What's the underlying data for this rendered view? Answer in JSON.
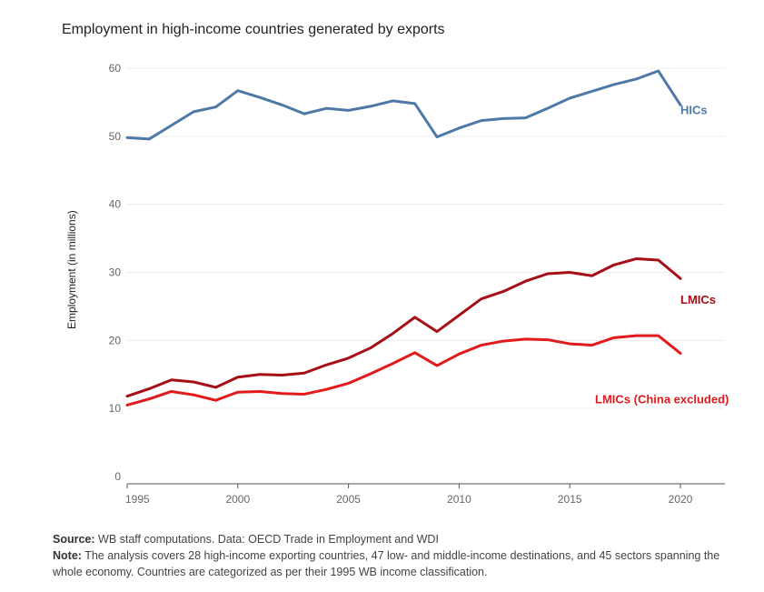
{
  "header": {
    "title": "Employment in high-income countries generated by exports"
  },
  "footer": {
    "source_label": "Source:",
    "source_text": " WB staff computations. Data: OECD Trade in Employment and WDI",
    "note_label": "Note:",
    "note_text": " The analysis covers 28 high-income exporting countries, 47 low- and middle-income destinations, and 45 sectors spanning the whole economy. Countries are categorized as per their 1995 WB income classification."
  },
  "chart_data": {
    "type": "line",
    "title": "Employment in high-income countries generated by exports",
    "xlabel": "",
    "ylabel": "Employment (in millions)",
    "xlim": [
      1995,
      2022
    ],
    "ylim": [
      0,
      60
    ],
    "grid": true,
    "x_ticks": [
      1995,
      2000,
      2005,
      2010,
      2015,
      2020
    ],
    "y_ticks": [
      0,
      10,
      20,
      30,
      40,
      50,
      60
    ],
    "x": [
      1995,
      1996,
      1997,
      1998,
      1999,
      2000,
      2001,
      2002,
      2003,
      2004,
      2005,
      2006,
      2007,
      2008,
      2009,
      2010,
      2011,
      2012,
      2013,
      2014,
      2015,
      2016,
      2017,
      2018,
      2019,
      2020
    ],
    "series": [
      {
        "name": "HICs",
        "color": "#4e79a7",
        "values": [
          49.8,
          49.6,
          51.6,
          53.6,
          54.3,
          56.7,
          55.7,
          54.6,
          53.3,
          54.1,
          53.8,
          54.4,
          55.2,
          54.8,
          49.9,
          51.2,
          52.3,
          52.6,
          52.7,
          54.1,
          55.6,
          56.6,
          57.6,
          58.4,
          59.6,
          54.6
        ]
      },
      {
        "name": "LMICs",
        "color": "#a50f15",
        "values": [
          11.8,
          12.9,
          14.2,
          13.9,
          13.1,
          14.6,
          15.0,
          14.9,
          15.2,
          16.4,
          17.4,
          18.9,
          21.0,
          23.4,
          21.3,
          23.7,
          26.1,
          27.2,
          28.7,
          29.8,
          30.0,
          29.5,
          31.1,
          32.0,
          31.8,
          29.1
        ]
      },
      {
        "name": "LMICs (China excluded)",
        "color": "#e31a1c",
        "values": [
          10.5,
          11.4,
          12.5,
          12.0,
          11.2,
          12.4,
          12.5,
          12.2,
          12.1,
          12.8,
          13.7,
          15.1,
          16.6,
          18.2,
          16.3,
          18.0,
          19.3,
          19.9,
          20.2,
          20.1,
          19.5,
          19.3,
          20.4,
          20.7,
          20.7,
          18.1
        ]
      }
    ]
  }
}
